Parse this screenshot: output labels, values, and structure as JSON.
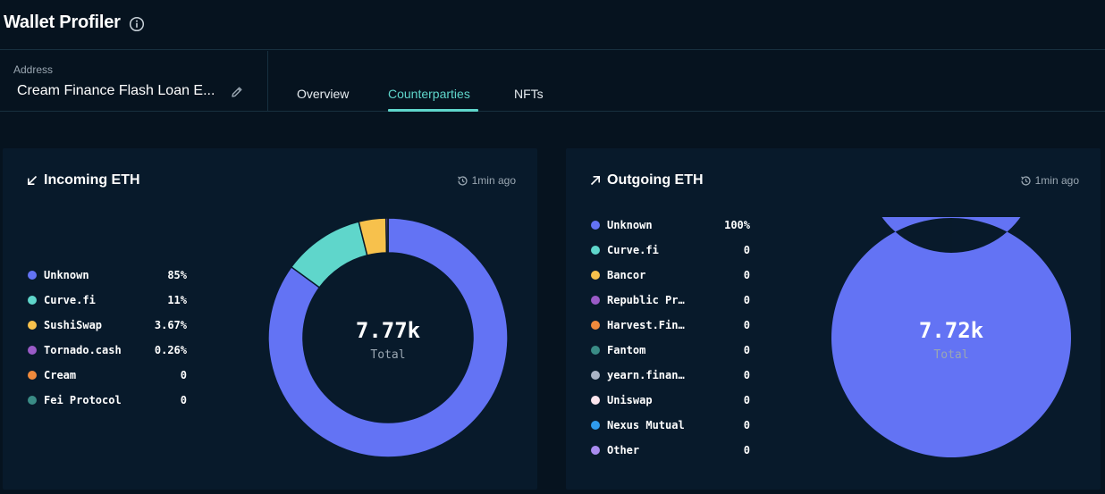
{
  "header": {
    "title": "Wallet Profiler",
    "info_icon": "info-icon"
  },
  "address": {
    "label": "Address",
    "value": "Cream Finance Flash Loan E..."
  },
  "tabs": [
    {
      "label": "Overview",
      "active": false
    },
    {
      "label": "Counterparties",
      "active": true
    },
    {
      "label": "NFTs",
      "active": false
    }
  ],
  "incoming": {
    "title": "Incoming ETH",
    "updated": "1min ago",
    "total": "7.77k",
    "total_label": "Total",
    "legend": [
      {
        "name": "Unknown",
        "value": "85%",
        "color": "#6373f4"
      },
      {
        "name": "Curve.fi",
        "value": "11%",
        "color": "#5fd6cb"
      },
      {
        "name": "SushiSwap",
        "value": "3.67%",
        "color": "#f7c14c"
      },
      {
        "name": "Tornado.cash",
        "value": "0.26%",
        "color": "#9a5bc7"
      },
      {
        "name": "Cream",
        "value": "0",
        "color": "#f08a3c"
      },
      {
        "name": "Fei Protocol",
        "value": "0",
        "color": "#3a8c86"
      }
    ]
  },
  "outgoing": {
    "title": "Outgoing ETH",
    "updated": "1min ago",
    "total": "7.72k",
    "total_label": "Total",
    "legend": [
      {
        "name": "Unknown",
        "value": "100%",
        "color": "#6373f4"
      },
      {
        "name": "Curve.fi",
        "value": "0",
        "color": "#5fd6cb"
      },
      {
        "name": "Bancor",
        "value": "0",
        "color": "#f7c14c"
      },
      {
        "name": "Republic Pr…",
        "value": "0",
        "color": "#9a5bc7"
      },
      {
        "name": "Harvest.Fin…",
        "value": "0",
        "color": "#f08a3c"
      },
      {
        "name": "Fantom",
        "value": "0",
        "color": "#3a8c86"
      },
      {
        "name": "yearn.finan…",
        "value": "0",
        "color": "#a9b4c6"
      },
      {
        "name": "Uniswap",
        "value": "0",
        "color": "#fde6ee"
      },
      {
        "name": "Nexus Mutual",
        "value": "0",
        "color": "#2f9bed"
      },
      {
        "name": "Other",
        "value": "0",
        "color": "#a98cf0"
      }
    ]
  },
  "chart_data": [
    {
      "type": "pie",
      "title": "Incoming ETH",
      "categories": [
        "Unknown",
        "Curve.fi",
        "SushiSwap",
        "Tornado.cash",
        "Cream",
        "Fei Protocol"
      ],
      "values": [
        85,
        11,
        3.67,
        0.26,
        0,
        0
      ]
    },
    {
      "type": "pie",
      "title": "Outgoing ETH",
      "categories": [
        "Unknown",
        "Curve.fi",
        "Bancor",
        "Republic Pr…",
        "Harvest.Fin…",
        "Fantom",
        "yearn.finan…",
        "Uniswap",
        "Nexus Mutual",
        "Other"
      ],
      "values": [
        100,
        0,
        0,
        0,
        0,
        0,
        0,
        0,
        0,
        0
      ]
    }
  ]
}
